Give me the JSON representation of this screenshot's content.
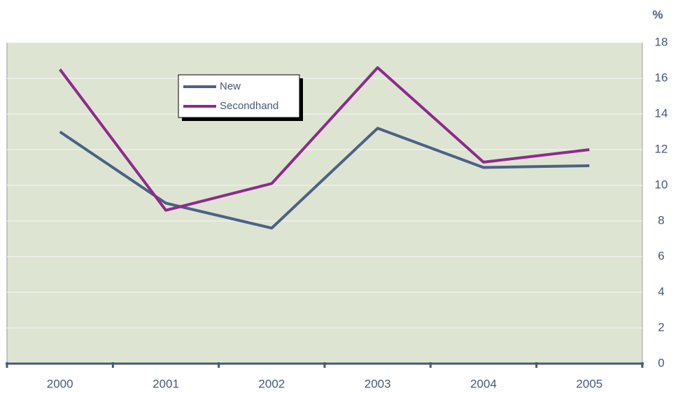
{
  "chart_data": {
    "type": "line",
    "y_axis_label": "%",
    "categories": [
      "2000",
      "2001",
      "2002",
      "2003",
      "2004",
      "2005"
    ],
    "series": [
      {
        "name": "New",
        "color": "#4a6284",
        "values": [
          13.0,
          9.0,
          7.6,
          13.2,
          11.0,
          11.1
        ]
      },
      {
        "name": "Secondhand",
        "color": "#8e2a8c",
        "values": [
          16.5,
          8.6,
          10.1,
          16.6,
          11.3,
          12.0
        ]
      }
    ],
    "ylim": [
      0,
      18
    ],
    "yticks": [
      0,
      2,
      4,
      6,
      8,
      10,
      12,
      14,
      16,
      18
    ],
    "grid": true,
    "plot_background": "#dde4d2"
  }
}
